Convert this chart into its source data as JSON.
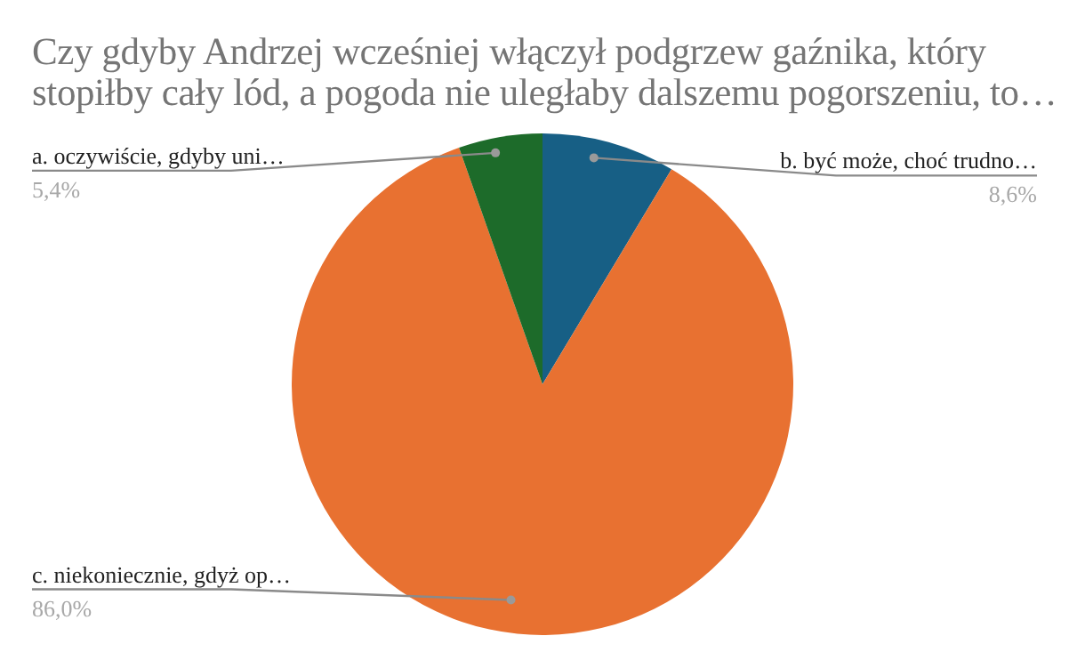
{
  "chart_data": {
    "type": "pie",
    "title": "Czy gdyby Andrzej wcześniej włączył podgrzew gaźnika, który stopiłby cały lód, a pogoda nie uległaby dalszemu pogorszeniu, to…",
    "categories": [
      "b. być może, choć trudno…",
      "c. niekoniecznie, gdyż op…",
      "a. oczywiście, gdyby uni…"
    ],
    "values": [
      8.6,
      86.0,
      5.4
    ],
    "value_labels": [
      "8,6%",
      "86,0%",
      "5,4%"
    ],
    "colors": [
      "#175f85",
      "#e87131",
      "#1d6b2a"
    ],
    "legend": false
  }
}
